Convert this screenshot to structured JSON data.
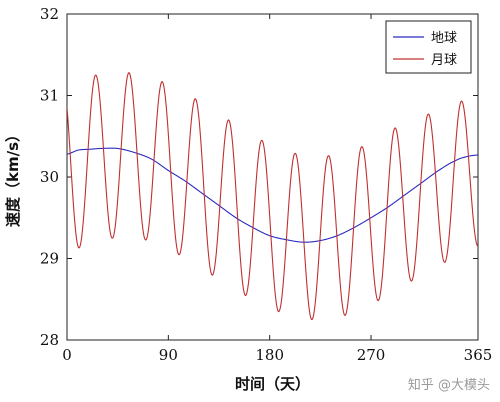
{
  "chart_data": {
    "type": "line",
    "xlabel": "时间（天）",
    "ylabel": "速度（km/s）",
    "xlim": [
      0,
      365
    ],
    "ylim": [
      28,
      32
    ],
    "xticks": [
      0,
      90,
      180,
      270,
      365
    ],
    "yticks": [
      28,
      29,
      30,
      31,
      32
    ],
    "grid": false,
    "legend": {
      "position": "top-right",
      "entries": [
        "地球",
        "月球"
      ]
    },
    "series": [
      {
        "name": "地球",
        "color": "#2b2bc0",
        "x": [
          0,
          10,
          20,
          30,
          45,
          60,
          75,
          90,
          105,
          120,
          135,
          150,
          165,
          180,
          195,
          210,
          225,
          240,
          255,
          270,
          285,
          300,
          315,
          330,
          345,
          355,
          365
        ],
        "y": [
          30.28,
          30.33,
          30.34,
          30.35,
          30.35,
          30.3,
          30.22,
          30.08,
          29.95,
          29.8,
          29.65,
          29.5,
          29.38,
          29.28,
          29.23,
          29.2,
          29.22,
          29.28,
          29.38,
          29.5,
          29.63,
          29.78,
          29.93,
          30.08,
          30.2,
          30.25,
          30.27
        ]
      },
      {
        "name": "月球",
        "color": "#c03030",
        "curve": {
          "period_days": 29.53,
          "first_peak_day": 25.5,
          "peaks": [
            [
              25.5,
              31.25
            ],
            [
              55,
              31.28
            ],
            [
              84.5,
              31.17
            ],
            [
              114,
              30.96
            ],
            [
              143.5,
              30.7
            ],
            [
              173,
              30.45
            ],
            [
              202.5,
              30.29
            ],
            [
              232,
              30.26
            ],
            [
              261.5,
              30.37
            ],
            [
              291,
              30.6
            ],
            [
              320.5,
              30.77
            ],
            [
              350,
              30.93
            ],
            [
              379.5,
              31.0
            ]
          ],
          "troughs": [
            [
              10.5,
              29.13
            ],
            [
              40,
              29.25
            ],
            [
              69.5,
              29.23
            ],
            [
              99,
              29.05
            ],
            [
              128.5,
              28.8
            ],
            [
              158,
              28.55
            ],
            [
              187.5,
              28.35
            ],
            [
              217,
              28.25
            ],
            [
              246.5,
              28.3
            ],
            [
              276,
              28.48
            ],
            [
              305.5,
              28.72
            ],
            [
              335,
              28.95
            ],
            [
              364.5,
              29.15
            ]
          ]
        }
      }
    ]
  },
  "watermark": "知乎 @大模头"
}
